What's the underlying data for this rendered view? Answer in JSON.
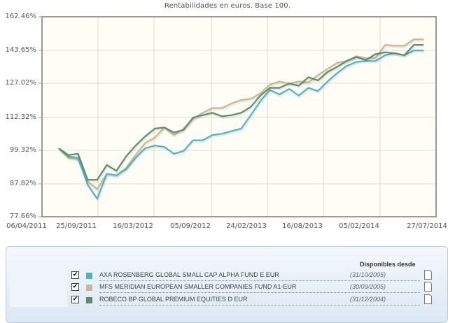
{
  "chart_data": {
    "type": "line",
    "title": "Rentabilidades en euros. Base 100.",
    "xlabel": "",
    "ylabel": "",
    "y_scale": "log",
    "ylim": [
      77.66,
      162.46
    ],
    "grid": true,
    "legend_position": "bottom",
    "y_ticks": [
      "162.46%",
      "143.65%",
      "127.02%",
      "112.32%",
      "99.32%",
      "87.82%",
      "77.66%"
    ],
    "x_ticks": [
      "06/04/2011",
      "25/09/2011",
      "16/03/2012",
      "05/09/2012",
      "24/02/2013",
      "16/08/2013",
      "05/02/2014",
      "27/07/2014"
    ],
    "x": [
      "04/2011",
      "05/2011",
      "06/2011",
      "07/2011",
      "08/2011",
      "09/2011",
      "10/2011",
      "11/2011",
      "12/2011",
      "01/2012",
      "02/2012",
      "03/2012",
      "04/2012",
      "05/2012",
      "06/2012",
      "07/2012",
      "08/2012",
      "09/2012",
      "10/2012",
      "11/2012",
      "12/2012",
      "01/2013",
      "02/2013",
      "03/2013",
      "04/2013",
      "05/2013",
      "06/2013",
      "07/2013",
      "08/2013",
      "09/2013",
      "10/2013",
      "11/2013",
      "12/2013",
      "01/2014",
      "02/2014",
      "03/2014",
      "04/2014",
      "05/2014",
      "06/2014"
    ],
    "series": [
      {
        "name": "AXA ROSENBERG GLOBAL SMALL CAP ALPHA FUND E EUR",
        "color": "#4fb3c4",
        "values": [
          100.0,
          97.0,
          96.5,
          87.5,
          83.0,
          91.0,
          90.5,
          92.5,
          96.5,
          100.0,
          101.0,
          100.5,
          98.0,
          99.0,
          103.0,
          103.0,
          105.0,
          105.5,
          106.5,
          107.5,
          113.0,
          119.0,
          124.0,
          122.0,
          124.5,
          121.5,
          125.0,
          123.5,
          128.0,
          132.0,
          135.5,
          137.5,
          138.0,
          138.0,
          141.0,
          142.0,
          141.0,
          143.5,
          143.5
        ]
      },
      {
        "name": "MFS MERIDIAN EUROPEAN SMALLER COMPANIES FUND A1-EUR",
        "color": "#c9b88e",
        "values": [
          100.0,
          96.5,
          96.0,
          88.5,
          86.0,
          91.0,
          90.5,
          93.0,
          97.5,
          102.0,
          104.0,
          108.0,
          105.0,
          107.5,
          111.5,
          114.0,
          116.0,
          116.0,
          118.0,
          119.5,
          120.0,
          122.5,
          126.5,
          128.0,
          127.0,
          128.0,
          127.5,
          131.0,
          134.0,
          137.0,
          138.0,
          140.5,
          139.5,
          139.5,
          146.5,
          146.0,
          146.0,
          149.5,
          149.5
        ]
      },
      {
        "name": "ROBECO BP GLOBAL PREMIUM EQUITIES D EUR",
        "color": "#5a8e6e",
        "values": [
          100.0,
          97.5,
          98.0,
          89.0,
          89.0,
          94.0,
          92.0,
          97.0,
          101.0,
          104.5,
          107.5,
          108.0,
          106.0,
          107.0,
          112.0,
          113.0,
          114.0,
          112.5,
          113.0,
          114.0,
          116.5,
          121.5,
          125.0,
          125.0,
          127.0,
          126.0,
          130.0,
          128.5,
          132.5,
          135.0,
          138.0,
          140.0,
          138.5,
          141.5,
          142.5,
          142.0,
          141.0,
          146.5,
          146.5
        ]
      }
    ]
  },
  "legend": {
    "header": "Disponibles desde",
    "items": [
      {
        "label": "AXA ROSENBERG GLOBAL SMALL CAP ALPHA FUND E EUR",
        "since": "(31/10/2005)",
        "checked": "✔",
        "color": "#4fb3c4"
      },
      {
        "label": "MFS MERIDIAN EUROPEAN SMALLER COMPANIES FUND A1-EUR",
        "since": "(30/09/2005)",
        "checked": "✔",
        "color": "#c9b88e"
      },
      {
        "label": "ROBECO BP GLOBAL PREMIUM EQUITIES D EUR",
        "since": "(31/12/2004)",
        "checked": "✔",
        "color": "#5a8e6e"
      }
    ]
  }
}
